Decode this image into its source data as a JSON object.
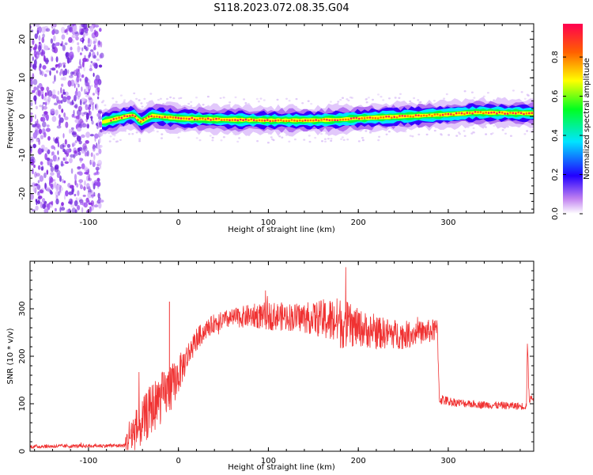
{
  "title": "S118.2023.072.08.35.G04",
  "chart_data": [
    {
      "type": "heatmap",
      "xlabel": "Height of straight line (km)",
      "ylabel": "Frequency (Hz)",
      "xlim": [
        -165,
        395
      ],
      "ylim": [
        -25,
        24
      ],
      "xticks": [
        -100,
        0,
        100,
        200,
        300
      ],
      "yticks": [
        -20,
        -10,
        0,
        10,
        20
      ],
      "colorbar": {
        "label": "Normalized spectral amplitude",
        "range": [
          0,
          0.97
        ],
        "ticks": [
          "0.0",
          "0.2",
          "0.4",
          "0.6",
          "0.8"
        ],
        "colors": [
          "#ffffff",
          "#b060f0",
          "#2200ff",
          "#00e5ff",
          "#00ff20",
          "#ffff00",
          "#ff6000",
          "#ff0050"
        ]
      },
      "noise_region_end_km": -85,
      "ridge_center": {
        "x": [
          -85,
          -50,
          -42,
          -30,
          0,
          50,
          100,
          150,
          180,
          200,
          250,
          300,
          330,
          395
        ],
        "y": [
          -1.5,
          0.5,
          -1.5,
          0.2,
          -0.5,
          -0.8,
          -1.0,
          -1.0,
          -0.8,
          -0.5,
          0.0,
          0.5,
          1.0,
          0.8
        ]
      }
    },
    {
      "type": "line",
      "xlabel": "Height of straight line (km)",
      "ylabel": "SNR (10 * v/v)",
      "xlim": [
        -165,
        395
      ],
      "ylim": [
        0,
        400
      ],
      "xticks": [
        -100,
        0,
        100,
        200,
        300
      ],
      "yticks": [
        0,
        100,
        200,
        300
      ],
      "color": "#f03232",
      "series_envelope": {
        "x": [
          -165,
          -60,
          -55,
          -40,
          -30,
          -20,
          -10,
          0,
          10,
          20,
          30,
          40,
          60,
          80,
          100,
          130,
          150,
          170,
          180,
          200,
          220,
          250,
          270,
          288,
          290,
          300,
          320,
          350,
          380,
          387,
          388,
          390,
          395
        ],
        "mean": [
          10,
          12,
          30,
          60,
          90,
          110,
          130,
          160,
          200,
          235,
          255,
          270,
          280,
          285,
          285,
          282,
          280,
          275,
          270,
          260,
          250,
          245,
          250,
          255,
          110,
          105,
          100,
          97,
          95,
          95,
          230,
          110,
          110
        ],
        "noise": [
          4,
          4,
          40,
          50,
          55,
          55,
          50,
          40,
          30,
          25,
          20,
          20,
          20,
          25,
          30,
          30,
          35,
          50,
          55,
          40,
          35,
          30,
          25,
          25,
          12,
          10,
          8,
          8,
          8,
          8,
          10,
          10,
          10
        ]
      }
    }
  ]
}
